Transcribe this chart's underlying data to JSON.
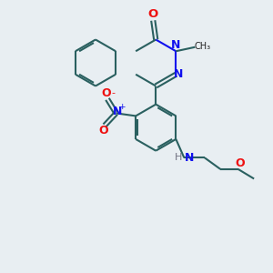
{
  "background_color": "#e8eef2",
  "bond_color": "#2a6060",
  "n_color": "#1010ee",
  "o_color": "#ee1010",
  "h_color": "#707080",
  "line_width": 1.5,
  "figsize": [
    3.0,
    3.0
  ],
  "dpi": 100,
  "xlim": [
    0,
    10
  ],
  "ylim": [
    0,
    10
  ]
}
